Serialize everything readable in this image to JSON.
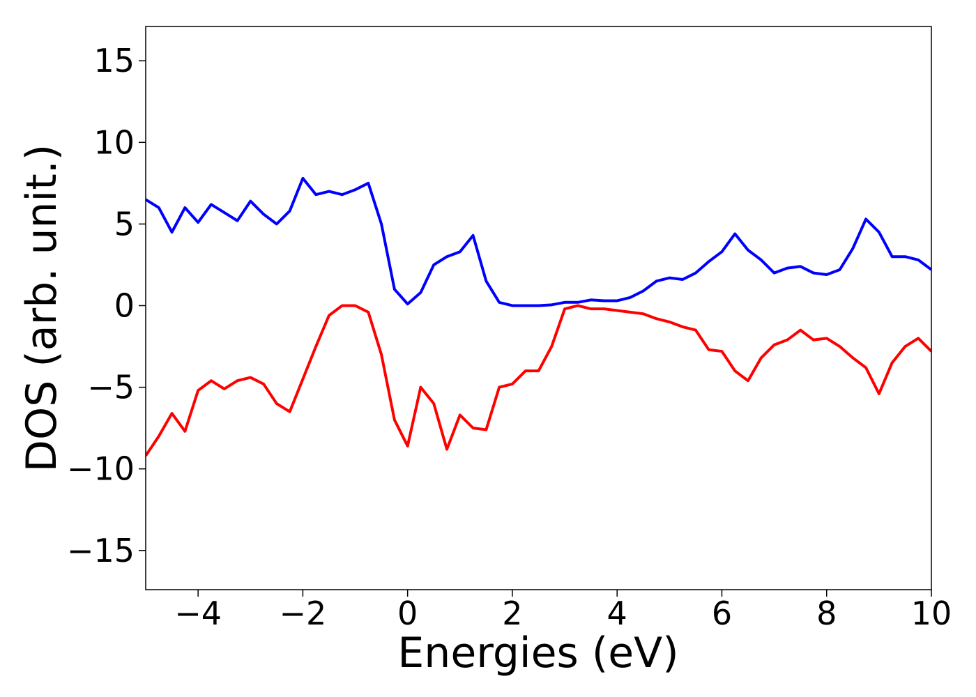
{
  "chart_data": {
    "type": "line",
    "xlabel": "Energies (eV)",
    "ylabel": "DOS (arb. unit.)",
    "x": [
      -5,
      -4.75,
      -4.5,
      -4.25,
      -4,
      -3.75,
      -3.5,
      -3.25,
      -3,
      -2.75,
      -2.5,
      -2.25,
      -2,
      -1.75,
      -1.5,
      -1.25,
      -1,
      -0.75,
      -0.5,
      -0.25,
      0,
      0.25,
      0.5,
      0.75,
      1,
      1.25,
      1.5,
      1.75,
      2,
      2.25,
      2.5,
      2.75,
      3,
      3.25,
      3.5,
      3.75,
      4,
      4.25,
      4.5,
      4.75,
      5,
      5.25,
      5.5,
      5.75,
      6,
      6.25,
      6.5,
      6.75,
      7,
      7.25,
      7.5,
      7.75,
      8,
      8.25,
      8.5,
      8.75,
      9,
      9.25,
      9.5,
      9.75,
      10
    ],
    "series": [
      {
        "color": "#0000ff",
        "values": [
          6.5,
          6.0,
          4.5,
          6.0,
          5.1,
          6.2,
          5.7,
          5.2,
          6.4,
          5.6,
          5.0,
          5.8,
          7.8,
          6.8,
          7.0,
          6.8,
          7.1,
          7.5,
          5.0,
          1.0,
          0.1,
          0.8,
          2.5,
          3.0,
          3.3,
          4.3,
          1.5,
          0.2,
          0,
          0,
          0,
          0.05,
          0.2,
          0.2,
          0.35,
          0.3,
          0.3,
          0.5,
          0.9,
          1.5,
          1.7,
          1.6,
          2.0,
          2.7,
          3.3,
          4.4,
          3.4,
          2.8,
          2.0,
          2.3,
          2.4,
          2.0,
          1.9,
          2.2,
          3.5,
          5.3,
          4.5,
          3.0,
          3.0,
          2.8,
          2.2
        ]
      },
      {
        "color": "#ff0000",
        "values": [
          -9.2,
          -8.0,
          -6.6,
          -7.7,
          -5.2,
          -4.6,
          -5.1,
          -4.6,
          -4.4,
          -4.8,
          -6.0,
          -6.5,
          -4.5,
          -2.5,
          -0.6,
          0,
          0,
          -0.4,
          -3.0,
          -7.0,
          -8.6,
          -5.0,
          -6.0,
          -8.8,
          -6.7,
          -7.5,
          -7.6,
          -5.0,
          -4.8,
          -4.0,
          -4.0,
          -2.5,
          -0.2,
          0,
          -0.2,
          -0.2,
          -0.3,
          -0.4,
          -0.5,
          -0.8,
          -1.0,
          -1.3,
          -1.5,
          -2.7,
          -2.8,
          -4.0,
          -4.6,
          -3.2,
          -2.4,
          -2.1,
          -1.5,
          -2.1,
          -2.0,
          -2.5,
          -3.2,
          -3.8,
          -5.4,
          -3.5,
          -2.5,
          -2.0,
          -2.8
        ]
      }
    ],
    "xlim": [
      -5,
      10
    ],
    "xticks": [
      {
        "value": -4,
        "label": "−4"
      },
      {
        "value": -2,
        "label": "−2"
      },
      0,
      2,
      4,
      6,
      8,
      10
    ],
    "ylim": [
      -17.4,
      17.1
    ],
    "yticks": [
      {
        "value": -15,
        "label": "−15"
      },
      {
        "value": -10,
        "label": "−10"
      },
      {
        "value": -5,
        "label": "−5"
      },
      0,
      5,
      10,
      15
    ],
    "grid": false
  }
}
